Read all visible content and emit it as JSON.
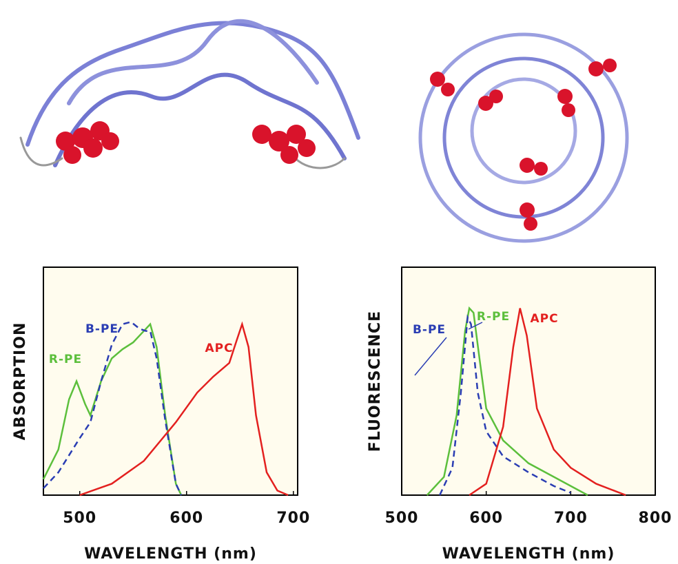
{
  "chart_data": [
    {
      "type": "line",
      "y_label": "ABSORPTION",
      "x_label": "WAVELENGTH (nm)",
      "xlim": [
        466,
        704
      ],
      "xticks": [
        500,
        600,
        700
      ],
      "ylim": [
        0,
        1
      ],
      "series": [
        {
          "name": "R-PE",
          "color": "#5cbf3c",
          "dash": false,
          "x": [
            466,
            480,
            490,
            497,
            505,
            510,
            520,
            530,
            540,
            550,
            560,
            566,
            572,
            580,
            590,
            595
          ],
          "values": [
            0.07,
            0.2,
            0.42,
            0.5,
            0.4,
            0.35,
            0.5,
            0.6,
            0.64,
            0.67,
            0.72,
            0.75,
            0.65,
            0.35,
            0.05,
            0
          ]
        },
        {
          "name": "B-PE",
          "color": "#2a3db3",
          "dash": true,
          "x": [
            466,
            480,
            500,
            510,
            520,
            530,
            540,
            548,
            556,
            562,
            566,
            572,
            580,
            590,
            595
          ],
          "values": [
            0.03,
            0.1,
            0.25,
            0.32,
            0.5,
            0.66,
            0.75,
            0.76,
            0.73,
            0.72,
            0.72,
            0.6,
            0.33,
            0.05,
            0
          ]
        },
        {
          "name": "APC",
          "color": "#e3201f",
          "dash": false,
          "x": [
            500,
            530,
            560,
            590,
            610,
            625,
            640,
            647,
            652,
            658,
            665,
            675,
            685,
            695
          ],
          "values": [
            0,
            0.05,
            0.15,
            0.32,
            0.45,
            0.52,
            0.58,
            0.68,
            0.75,
            0.65,
            0.35,
            0.1,
            0.02,
            0
          ]
        }
      ]
    },
    {
      "type": "line",
      "y_label": "FLUORESCENCE",
      "x_label": "WAVELENGTH (nm)",
      "xlim": [
        500,
        800
      ],
      "xticks": [
        500,
        600,
        700,
        800
      ],
      "ylim": [
        0,
        1
      ],
      "series": [
        {
          "name": "R-PE",
          "color": "#5cbf3c",
          "dash": false,
          "x": [
            530,
            550,
            565,
            575,
            580,
            585,
            592,
            600,
            620,
            650,
            680,
            700,
            720
          ],
          "values": [
            0,
            0.08,
            0.35,
            0.72,
            0.82,
            0.8,
            0.6,
            0.38,
            0.24,
            0.14,
            0.08,
            0.04,
            0
          ]
        },
        {
          "name": "B-PE",
          "color": "#2a3db3",
          "dash": true,
          "x": [
            545,
            560,
            570,
            578,
            582,
            590,
            600,
            620,
            650,
            680,
            700
          ],
          "values": [
            0,
            0.12,
            0.45,
            0.78,
            0.75,
            0.45,
            0.28,
            0.17,
            0.1,
            0.04,
            0.01
          ]
        },
        {
          "name": "APC",
          "color": "#e3201f",
          "dash": false,
          "x": [
            580,
            600,
            620,
            632,
            640,
            648,
            660,
            680,
            700,
            730,
            765
          ],
          "values": [
            0,
            0.05,
            0.3,
            0.65,
            0.82,
            0.7,
            0.38,
            0.2,
            0.12,
            0.05,
            0
          ]
        }
      ]
    }
  ]
}
